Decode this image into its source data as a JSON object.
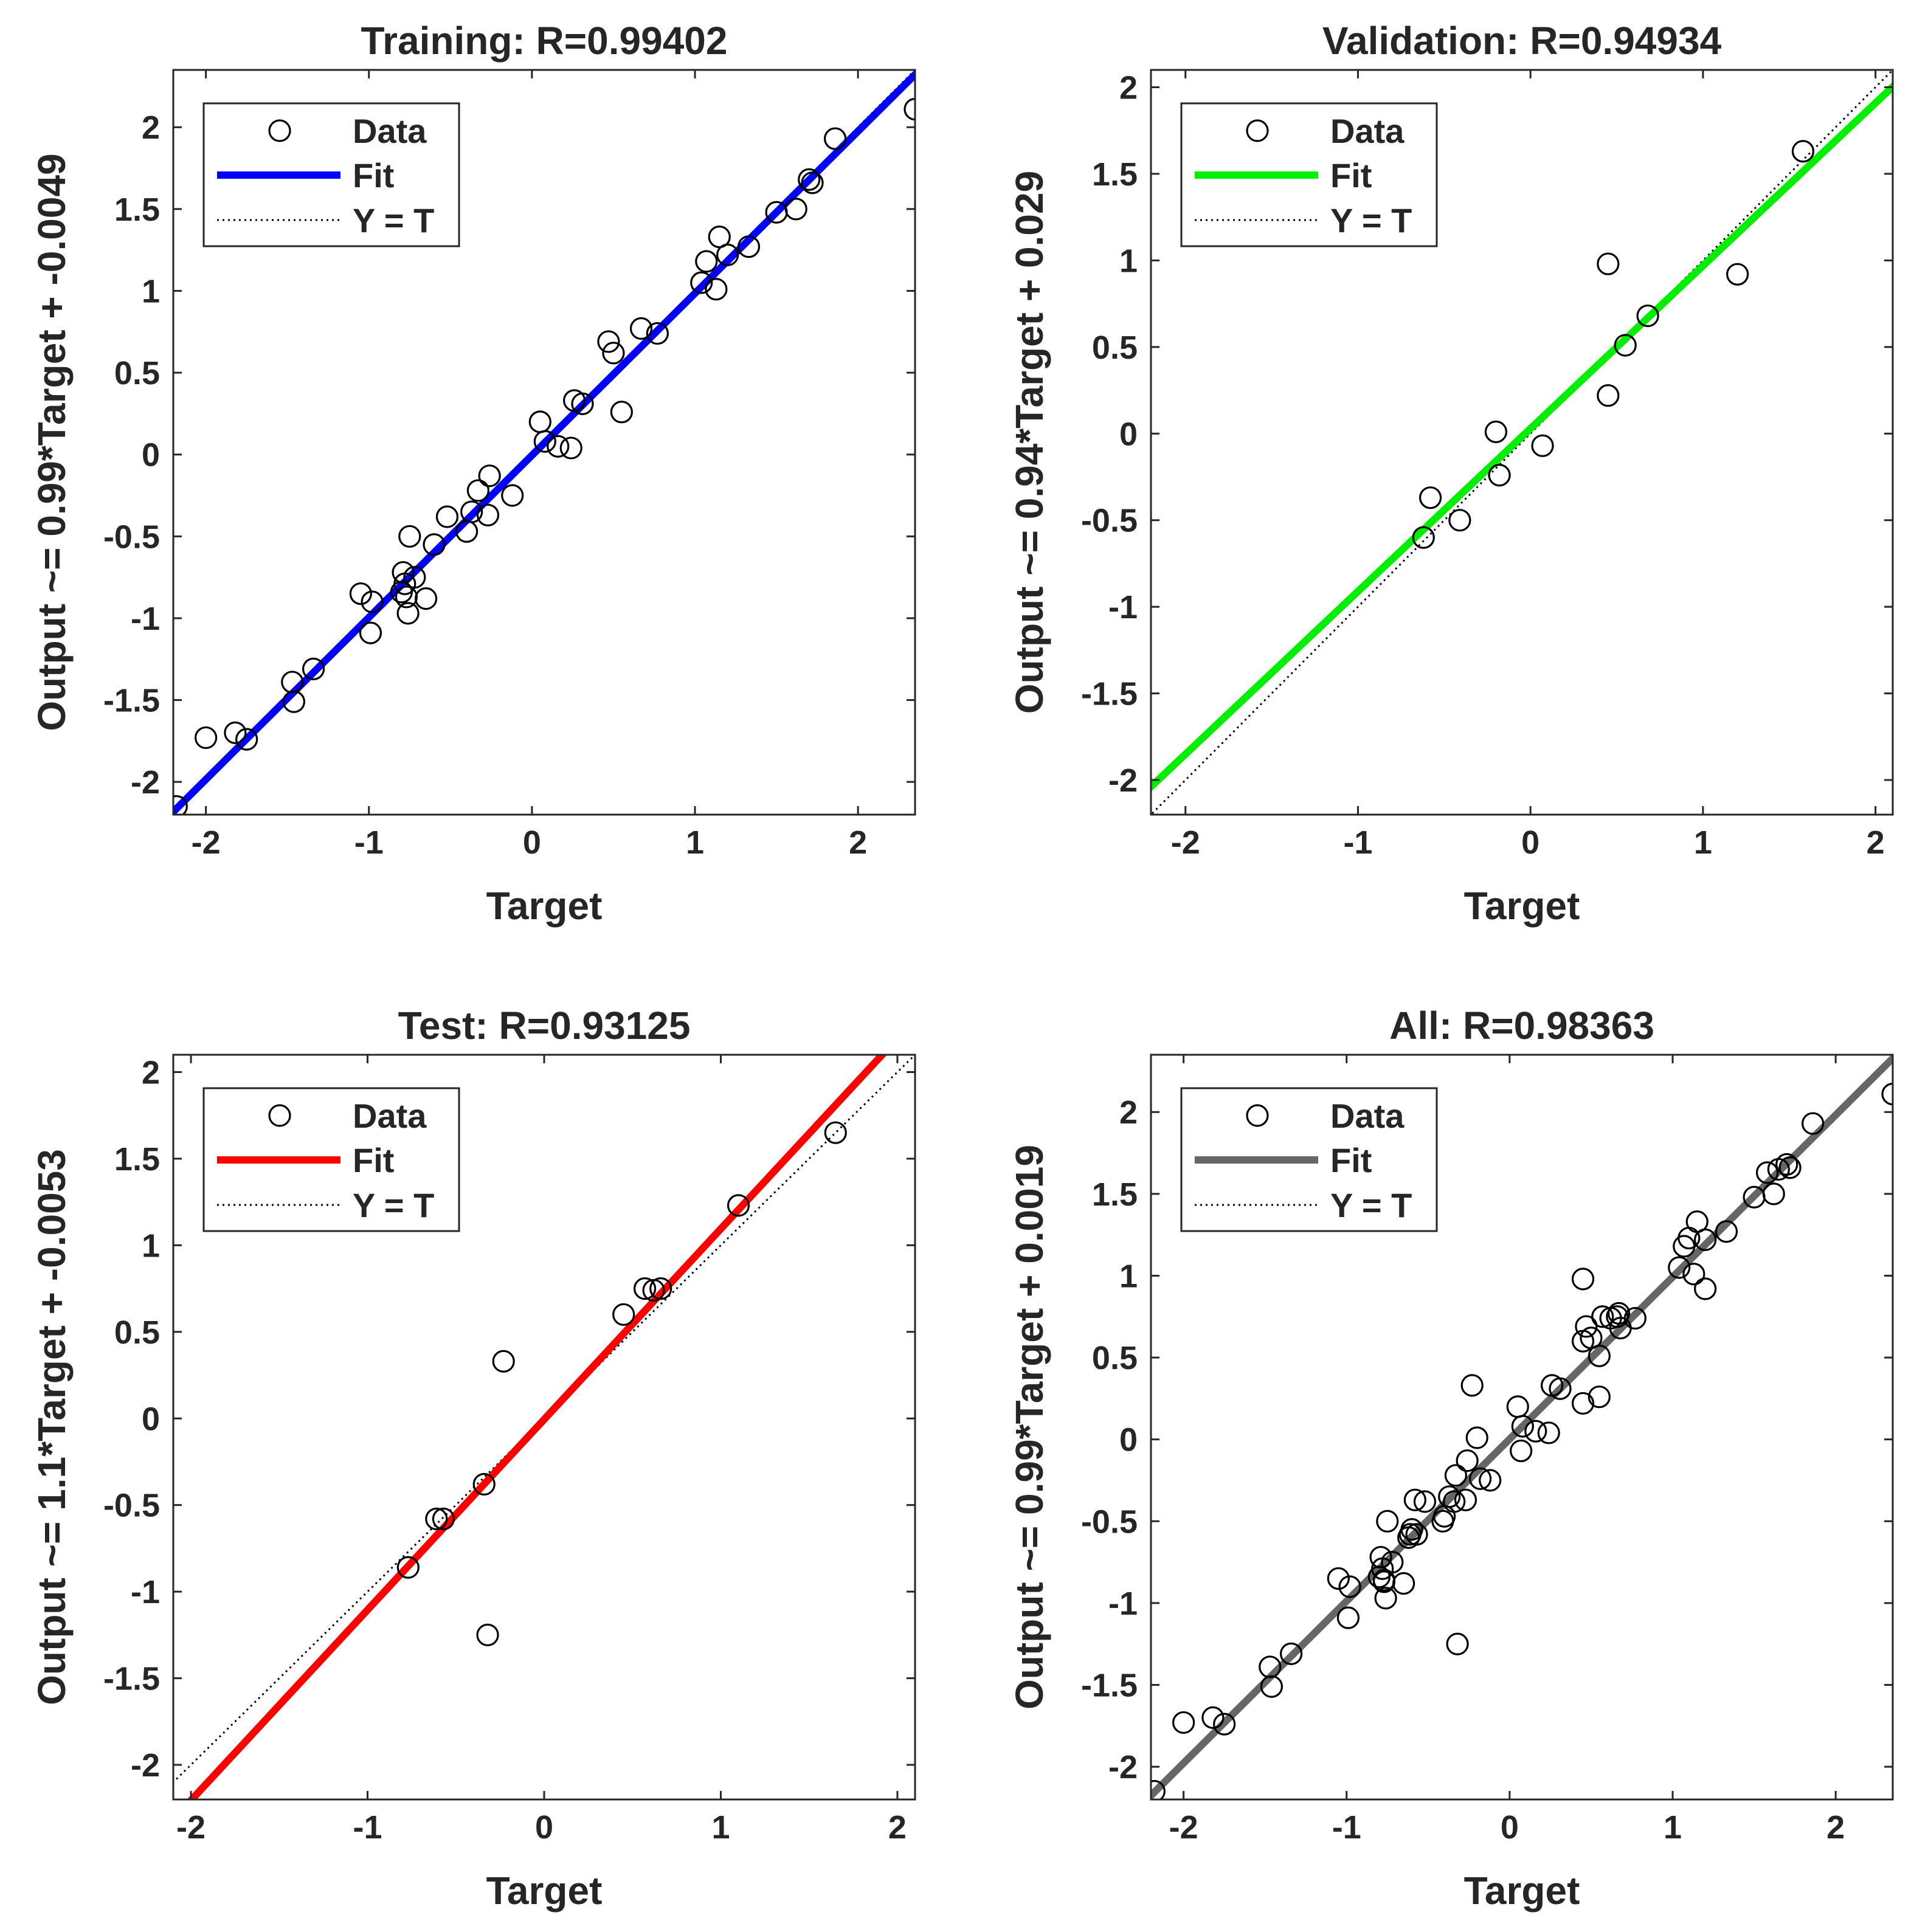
{
  "chart_data": [
    {
      "type": "scatter",
      "title": "Training: R=0.99402",
      "xlabel": "Target",
      "ylabel": "Output ~= 0.99*Target + -0.0049",
      "xlim": [
        -2.2,
        2.35
      ],
      "ylim": [
        -2.2,
        2.35
      ],
      "xticks": [
        -2,
        -1,
        0,
        1,
        2
      ],
      "yticks": [
        -2,
        -1.5,
        -1,
        -0.5,
        0,
        0.5,
        1,
        1.5,
        2
      ],
      "xtick_labels": [
        "-2",
        "-1",
        "0",
        "1",
        "2"
      ],
      "ytick_labels": [
        "-2",
        "-1.5",
        "-1",
        "-0.5",
        "0",
        "0.5",
        "1",
        "1.5",
        "2"
      ],
      "fit": {
        "slope": 0.99,
        "intercept": -0.0049,
        "color": "#0000ff"
      },
      "legend": {
        "data": "Data",
        "fit": "Fit",
        "identity": "Y = T"
      },
      "points": [
        [
          -2.18,
          -2.15
        ],
        [
          -2.0,
          -1.73
        ],
        [
          -1.82,
          -1.7
        ],
        [
          -1.75,
          -1.74
        ],
        [
          -1.47,
          -1.39
        ],
        [
          -1.46,
          -1.51
        ],
        [
          -1.34,
          -1.31
        ],
        [
          -1.05,
          -0.85
        ],
        [
          -0.99,
          -1.09
        ],
        [
          -0.98,
          -0.9
        ],
        [
          -0.8,
          -0.84
        ],
        [
          -0.79,
          -0.72
        ],
        [
          -0.78,
          -0.79
        ],
        [
          -0.77,
          -0.87
        ],
        [
          -0.76,
          -0.97
        ],
        [
          -0.75,
          -0.5
        ],
        [
          -0.72,
          -0.75
        ],
        [
          -0.65,
          -0.88
        ],
        [
          -0.6,
          -0.55
        ],
        [
          -0.52,
          -0.38
        ],
        [
          -0.4,
          -0.47
        ],
        [
          -0.37,
          -0.35
        ],
        [
          -0.33,
          -0.22
        ],
        [
          -0.27,
          -0.37
        ],
        [
          -0.26,
          -0.13
        ],
        [
          -0.12,
          -0.25
        ],
        [
          0.05,
          0.2
        ],
        [
          0.08,
          0.08
        ],
        [
          0.16,
          0.05
        ],
        [
          0.24,
          0.04
        ],
        [
          0.26,
          0.33
        ],
        [
          0.31,
          0.31
        ],
        [
          0.47,
          0.69
        ],
        [
          0.5,
          0.62
        ],
        [
          0.55,
          0.26
        ],
        [
          0.67,
          0.77
        ],
        [
          0.77,
          0.74
        ],
        [
          1.04,
          1.05
        ],
        [
          1.07,
          1.18
        ],
        [
          1.13,
          1.01
        ],
        [
          1.15,
          1.33
        ],
        [
          1.2,
          1.22
        ],
        [
          1.33,
          1.27
        ],
        [
          1.5,
          1.48
        ],
        [
          1.62,
          1.5
        ],
        [
          1.7,
          1.68
        ],
        [
          1.72,
          1.66
        ],
        [
          1.86,
          1.93
        ],
        [
          2.35,
          2.11
        ]
      ]
    },
    {
      "type": "scatter",
      "title": "Validation: R=0.94934",
      "xlabel": "Target",
      "ylabel": "Output ~= 0.94*Target + 0.029",
      "xlim": [
        -2.2,
        2.1
      ],
      "ylim": [
        -2.2,
        2.1
      ],
      "xticks": [
        -2,
        -1,
        0,
        1,
        2
      ],
      "yticks": [
        -2,
        -1.5,
        -1,
        -0.5,
        0,
        0.5,
        1,
        1.5,
        2
      ],
      "xtick_labels": [
        "-2",
        "-1",
        "0",
        "1",
        "2"
      ],
      "ytick_labels": [
        "-2",
        "-1.5",
        "-1",
        "-0.5",
        "0",
        "0.5",
        "1",
        "1.5",
        "2"
      ],
      "fit": {
        "slope": 0.94,
        "intercept": 0.029,
        "color": "#00ee00"
      },
      "legend": {
        "data": "Data",
        "fit": "Fit",
        "identity": "Y = T"
      },
      "points": [
        [
          -0.62,
          -0.6
        ],
        [
          -0.58,
          -0.37
        ],
        [
          -0.41,
          -0.5
        ],
        [
          -0.2,
          0.01
        ],
        [
          -0.18,
          -0.24
        ],
        [
          0.07,
          -0.07
        ],
        [
          0.45,
          0.98
        ],
        [
          0.45,
          0.22
        ],
        [
          0.55,
          0.51
        ],
        [
          0.68,
          0.68
        ],
        [
          1.2,
          0.92
        ],
        [
          1.58,
          1.63
        ]
      ]
    },
    {
      "type": "scatter",
      "title": "Test: R=0.93125",
      "xlabel": "Target",
      "ylabel": "Output ~= 1.1*Target + -0.0053",
      "xlim": [
        -2.1,
        2.1
      ],
      "ylim": [
        -2.2,
        2.1
      ],
      "xticks": [
        -2,
        -1,
        0,
        1,
        2
      ],
      "yticks": [
        -2,
        -1.5,
        -1,
        -0.5,
        0,
        0.5,
        1,
        1.5,
        2
      ],
      "xtick_labels": [
        "-2",
        "-1",
        "0",
        "1",
        "2"
      ],
      "ytick_labels": [
        "-2",
        "-1.5",
        "-1",
        "-0.5",
        "0",
        "0.5",
        "1",
        "1.5",
        "2"
      ],
      "fit": {
        "slope": 1.1,
        "intercept": -0.0053,
        "color": "#ff0000"
      },
      "legend": {
        "data": "Data",
        "fit": "Fit",
        "identity": "Y = T"
      },
      "points": [
        [
          -0.77,
          -0.86
        ],
        [
          -0.61,
          -0.58
        ],
        [
          -0.57,
          -0.58
        ],
        [
          -0.34,
          -0.38
        ],
        [
          -0.32,
          -1.25
        ],
        [
          -0.23,
          0.33
        ],
        [
          0.45,
          0.6
        ],
        [
          0.57,
          0.75
        ],
        [
          0.62,
          0.74
        ],
        [
          0.66,
          0.75
        ],
        [
          1.1,
          1.23
        ],
        [
          1.65,
          1.65
        ]
      ]
    },
    {
      "type": "scatter",
      "title": "All: R=0.98363",
      "xlabel": "Target",
      "ylabel": "Output ~= 0.99*Target + 0.0019",
      "xlim": [
        -2.2,
        2.35
      ],
      "ylim": [
        -2.2,
        2.35
      ],
      "xticks": [
        -2,
        -1,
        0,
        1,
        2
      ],
      "yticks": [
        -2,
        -1.5,
        -1,
        -0.5,
        0,
        0.5,
        1,
        1.5,
        2
      ],
      "xtick_labels": [
        "-2",
        "-1",
        "0",
        "1",
        "2"
      ],
      "ytick_labels": [
        "-2",
        "-1.5",
        "-1",
        "-0.5",
        "0",
        "0.5",
        "1",
        "1.5",
        "2"
      ],
      "fit": {
        "slope": 0.99,
        "intercept": 0.0019,
        "color": "#666666"
      },
      "legend": {
        "data": "Data",
        "fit": "Fit",
        "identity": "Y = T"
      },
      "points": [
        [
          -2.18,
          -2.15
        ],
        [
          -2.0,
          -1.73
        ],
        [
          -1.82,
          -1.7
        ],
        [
          -1.75,
          -1.74
        ],
        [
          -1.47,
          -1.39
        ],
        [
          -1.46,
          -1.51
        ],
        [
          -1.34,
          -1.31
        ],
        [
          -1.05,
          -0.85
        ],
        [
          -0.99,
          -1.09
        ],
        [
          -0.98,
          -0.9
        ],
        [
          -0.8,
          -0.84
        ],
        [
          -0.79,
          -0.72
        ],
        [
          -0.78,
          -0.79
        ],
        [
          -0.77,
          -0.87
        ],
        [
          -0.76,
          -0.97
        ],
        [
          -0.75,
          -0.5
        ],
        [
          -0.72,
          -0.75
        ],
        [
          -0.65,
          -0.88
        ],
        [
          -0.6,
          -0.55
        ],
        [
          -0.52,
          -0.38
        ],
        [
          -0.4,
          -0.47
        ],
        [
          -0.37,
          -0.35
        ],
        [
          -0.33,
          -0.22
        ],
        [
          -0.27,
          -0.37
        ],
        [
          -0.26,
          -0.13
        ],
        [
          -0.12,
          -0.25
        ],
        [
          0.05,
          0.2
        ],
        [
          0.08,
          0.08
        ],
        [
          0.16,
          0.05
        ],
        [
          0.24,
          0.04
        ],
        [
          0.26,
          0.33
        ],
        [
          0.31,
          0.31
        ],
        [
          0.47,
          0.69
        ],
        [
          0.5,
          0.62
        ],
        [
          0.55,
          0.26
        ],
        [
          0.67,
          0.77
        ],
        [
          0.77,
          0.74
        ],
        [
          1.04,
          1.05
        ],
        [
          1.07,
          1.18
        ],
        [
          1.13,
          1.01
        ],
        [
          1.15,
          1.33
        ],
        [
          1.2,
          1.22
        ],
        [
          1.33,
          1.27
        ],
        [
          1.5,
          1.48
        ],
        [
          1.62,
          1.5
        ],
        [
          1.7,
          1.68
        ],
        [
          1.72,
          1.66
        ],
        [
          1.86,
          1.93
        ],
        [
          2.35,
          2.11
        ],
        [
          -0.62,
          -0.6
        ],
        [
          -0.58,
          -0.37
        ],
        [
          -0.41,
          -0.5
        ],
        [
          -0.2,
          0.01
        ],
        [
          -0.18,
          -0.24
        ],
        [
          0.07,
          -0.07
        ],
        [
          0.45,
          0.98
        ],
        [
          0.45,
          0.22
        ],
        [
          0.55,
          0.51
        ],
        [
          0.68,
          0.68
        ],
        [
          1.2,
          0.92
        ],
        [
          1.58,
          1.63
        ],
        [
          -0.77,
          -0.86
        ],
        [
          -0.61,
          -0.58
        ],
        [
          -0.57,
          -0.58
        ],
        [
          -0.34,
          -0.38
        ],
        [
          -0.32,
          -1.25
        ],
        [
          -0.23,
          0.33
        ],
        [
          0.45,
          0.6
        ],
        [
          0.57,
          0.75
        ],
        [
          0.62,
          0.74
        ],
        [
          0.66,
          0.75
        ],
        [
          1.1,
          1.23
        ],
        [
          1.65,
          1.65
        ]
      ]
    }
  ]
}
